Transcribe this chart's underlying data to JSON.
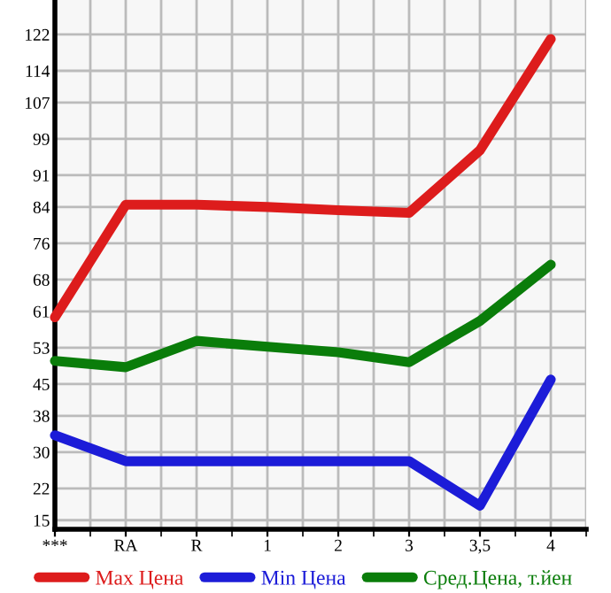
{
  "chart_data": {
    "type": "line",
    "categories": [
      "***",
      "RA",
      "R",
      "1",
      "2",
      "3",
      "3,5",
      "4"
    ],
    "series": [
      {
        "name": "Max Цена",
        "color": "#dd1c1c",
        "values": [
          59.7,
          84.5,
          84.5,
          84,
          83.3,
          82.7,
          96.5,
          121
        ]
      },
      {
        "name": "Min Цена",
        "color": "#1c1cd8",
        "values": [
          33.7,
          28,
          28,
          28,
          28,
          28,
          18.2,
          46
        ]
      },
      {
        "name": "Сред.Цена, т.йен",
        "color": "#0a7d0a",
        "values": [
          50.1,
          48.7,
          54.5,
          53.2,
          52,
          49.8,
          58.9,
          71.3
        ]
      }
    ],
    "ylim": [
      13,
      129.6
    ],
    "yticks": [
      15,
      22,
      30,
      38,
      45,
      53,
      61,
      68,
      76,
      84,
      91,
      99,
      107,
      114,
      122
    ],
    "grid": true,
    "legend": "bottom",
    "marker": "none",
    "line_style": "solid"
  }
}
